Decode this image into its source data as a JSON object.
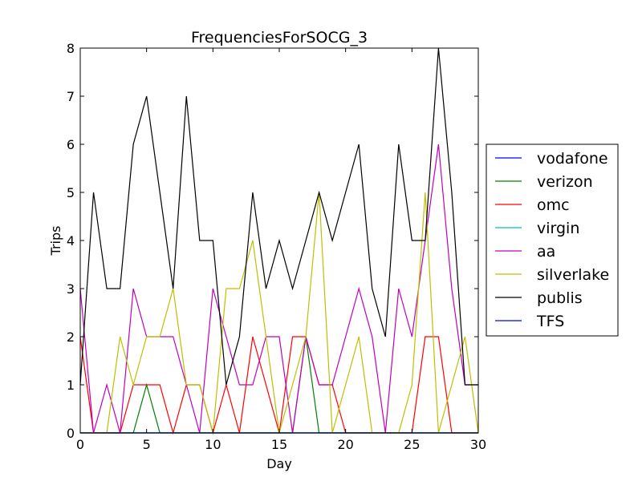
{
  "chart_data": {
    "type": "line",
    "title": "FrequenciesForSOCG_3",
    "xlabel": "Day",
    "ylabel": "Trips",
    "xlim": [
      0,
      30
    ],
    "ylim": [
      0,
      8
    ],
    "xticks": [
      0,
      5,
      10,
      15,
      20,
      25,
      30
    ],
    "yticks": [
      0,
      1,
      2,
      3,
      4,
      5,
      6,
      7,
      8
    ],
    "grid": false,
    "legend_position": "center-right outside",
    "x": [
      0,
      1,
      2,
      3,
      4,
      5,
      6,
      7,
      8,
      9,
      10,
      11,
      12,
      13,
      14,
      15,
      16,
      17,
      18,
      19,
      20,
      21,
      22,
      23,
      24,
      25,
      26,
      27,
      28,
      29,
      30
    ],
    "series": [
      {
        "name": "vodafone",
        "color": "#0000ff",
        "values": [
          0,
          0,
          0,
          0,
          0,
          0,
          0,
          0,
          0,
          0,
          0,
          0,
          0,
          0,
          0,
          0,
          0,
          0,
          0,
          0,
          0,
          0,
          0,
          0,
          0,
          0,
          0,
          0,
          0,
          0,
          0
        ]
      },
      {
        "name": "verizon",
        "color": "#008000",
        "values": [
          0,
          0,
          0,
          0,
          0,
          1,
          0,
          0,
          0,
          0,
          0,
          0,
          0,
          0,
          0,
          0,
          0,
          2,
          0,
          0,
          0,
          0,
          0,
          0,
          0,
          0,
          0,
          0,
          0,
          0,
          0
        ]
      },
      {
        "name": "omc",
        "color": "#ff0000",
        "values": [
          2,
          0,
          0,
          0,
          1,
          1,
          1,
          0,
          1,
          1,
          0,
          1,
          0,
          2,
          1,
          0,
          2,
          2,
          1,
          1,
          0,
          0,
          0,
          0,
          0,
          0,
          2,
          2,
          0,
          0,
          0
        ]
      },
      {
        "name": "virgin",
        "color": "#00bfbf",
        "values": [
          0,
          0,
          0,
          0,
          0,
          0,
          0,
          0,
          0,
          0,
          0,
          0,
          0,
          0,
          0,
          0,
          0,
          0,
          0,
          0,
          0,
          0,
          0,
          0,
          0,
          0,
          0,
          0,
          0,
          0,
          0
        ]
      },
      {
        "name": "aa",
        "color": "#bf00bf",
        "values": [
          3,
          0,
          1,
          0,
          3,
          2,
          2,
          2,
          1,
          0,
          3,
          2,
          1,
          1,
          2,
          2,
          0,
          2,
          1,
          1,
          2,
          3,
          2,
          0,
          3,
          2,
          4,
          6,
          3,
          1,
          1
        ]
      },
      {
        "name": "silverlake",
        "color": "#bfbf00",
        "values": [
          0,
          0,
          0,
          2,
          1,
          2,
          2,
          3,
          1,
          1,
          0,
          3,
          3,
          4,
          2,
          0,
          1,
          2,
          5,
          0,
          1,
          2,
          0,
          0,
          0,
          1,
          5,
          0,
          1,
          2,
          0
        ]
      },
      {
        "name": "publis",
        "color": "#000000",
        "values": [
          1,
          5,
          3,
          3,
          6,
          7,
          5,
          3,
          7,
          4,
          4,
          1,
          2,
          5,
          3,
          4,
          3,
          4,
          5,
          4,
          5,
          6,
          3,
          2,
          6,
          4,
          4,
          8,
          5,
          1,
          1
        ]
      },
      {
        "name": "TFS",
        "color": "#0000ff",
        "values": [
          0,
          0,
          0,
          0,
          0,
          0,
          0,
          0,
          0,
          0,
          0,
          0,
          0,
          0,
          0,
          0,
          0,
          0,
          0,
          0,
          0,
          0,
          0,
          0,
          0,
          0,
          0,
          0,
          0,
          0,
          0
        ]
      }
    ]
  }
}
